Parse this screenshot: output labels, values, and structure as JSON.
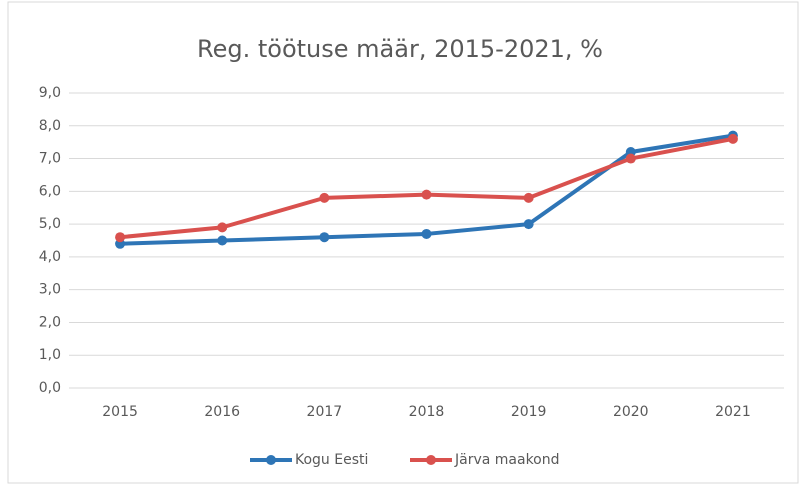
{
  "chart_data": {
    "type": "line",
    "title": "Reg. töötuse määr, 2015-2021, %",
    "categories": [
      "2015",
      "2016",
      "2017",
      "2018",
      "2019",
      "2020",
      "2021"
    ],
    "series": [
      {
        "name": "Kogu Eesti",
        "color": "#2e75b6",
        "values": [
          4.4,
          4.5,
          4.6,
          4.7,
          5.0,
          7.2,
          7.7
        ]
      },
      {
        "name": "Järva maakond",
        "color": "#d9514e",
        "values": [
          4.6,
          4.9,
          5.8,
          5.9,
          5.8,
          7.0,
          7.6
        ]
      }
    ],
    "ylim": [
      0,
      9
    ],
    "yticks": [
      {
        "value": 0,
        "label": "0,0"
      },
      {
        "value": 1,
        "label": "1,0"
      },
      {
        "value": 2,
        "label": "2,0"
      },
      {
        "value": 3,
        "label": "3,0"
      },
      {
        "value": 4,
        "label": "4,0"
      },
      {
        "value": 5,
        "label": "5,0"
      },
      {
        "value": 6,
        "label": "6,0"
      },
      {
        "value": 7,
        "label": "7,0"
      },
      {
        "value": 8,
        "label": "8,0"
      },
      {
        "value": 9,
        "label": "9,0"
      }
    ],
    "grid": true,
    "legend": "bottom"
  }
}
